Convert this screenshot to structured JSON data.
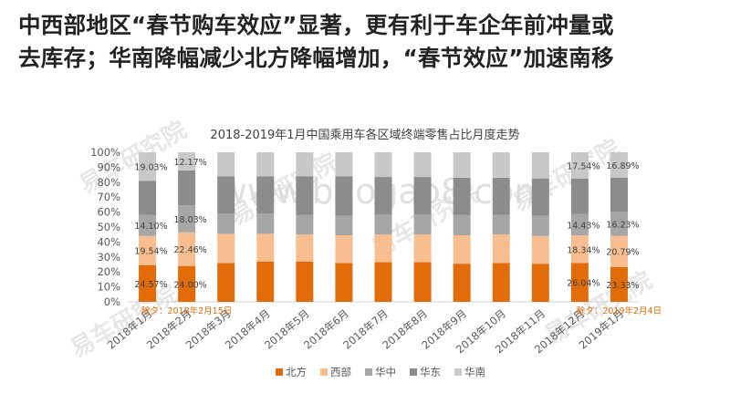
{
  "headline": {
    "line1": "中西部地区“春节购车效应”显著，更有利于车企年前冲量或",
    "line2": "去库存；华南降幅减少北方降幅增加，“春节效应”加速南移"
  },
  "watermarks": [
    "易车研究院",
    "www.baogao8.com"
  ],
  "colors": {
    "北方": "#E36C0A",
    "西部": "#F9BE8F",
    "华中": "#A6A6A6",
    "华东": "#8C8C8C",
    "华南": "#C8C8C8"
  },
  "chart_data": {
    "type": "bar",
    "stacked": "percent",
    "title": "2018-2019年1月中国乘用车各区域终端零售占比月度走势",
    "categories": [
      "2018年1月",
      "2018年2月",
      "2018年3月",
      "2018年4月",
      "2018年5月",
      "2018年6月",
      "2018年7月",
      "2018年8月",
      "2018年9月",
      "2018年10月",
      "2018年11月",
      "2018年12月",
      "2019年1月"
    ],
    "ylim": [
      0,
      100
    ],
    "yticks": [
      "0%",
      "10%",
      "20%",
      "30%",
      "40%",
      "50%",
      "60%",
      "70%",
      "80%",
      "90%",
      "100%"
    ],
    "legend_position": "bottom",
    "grid": false,
    "series": [
      {
        "name": "北方",
        "values": [
          24.57,
          24.0,
          26.0,
          27.0,
          27.0,
          26.0,
          26.5,
          26.5,
          25.5,
          26.0,
          25.5,
          26.04,
          23.33
        ]
      },
      {
        "name": "西部",
        "values": [
          19.54,
          22.46,
          19.5,
          18.5,
          18.0,
          18.5,
          18.5,
          18.5,
          19.0,
          19.0,
          18.5,
          18.34,
          20.79
        ]
      },
      {
        "name": "华中",
        "values": [
          14.1,
          18.03,
          13.5,
          13.5,
          13.0,
          13.0,
          13.5,
          13.5,
          13.5,
          13.0,
          13.5,
          14.43,
          16.23
        ]
      },
      {
        "name": "华东",
        "values": [
          22.76,
          23.34,
          25.0,
          25.0,
          26.0,
          26.5,
          25.0,
          25.0,
          25.0,
          25.0,
          25.0,
          23.65,
          22.76
        ]
      },
      {
        "name": "华南",
        "values": [
          19.03,
          12.17,
          16.0,
          16.0,
          16.0,
          16.0,
          16.5,
          16.5,
          17.0,
          17.0,
          17.5,
          17.54,
          16.89
        ]
      }
    ],
    "data_labels": [
      {
        "category": 0,
        "series": "北方",
        "text": "24.57%"
      },
      {
        "category": 0,
        "series": "西部",
        "text": "19.54%"
      },
      {
        "category": 0,
        "series": "华中",
        "text": "14.10%"
      },
      {
        "category": 0,
        "series": "华南",
        "text": "19.03%"
      },
      {
        "category": 1,
        "series": "北方",
        "text": "24.00%"
      },
      {
        "category": 1,
        "series": "西部",
        "text": "22.46%"
      },
      {
        "category": 1,
        "series": "华中",
        "text": "18.03%"
      },
      {
        "category": 1,
        "series": "华南",
        "text": "12.17%"
      },
      {
        "category": 11,
        "series": "北方",
        "text": "26.04%"
      },
      {
        "category": 11,
        "series": "西部",
        "text": "18.34%"
      },
      {
        "category": 11,
        "series": "华中",
        "text": "14.43%"
      },
      {
        "category": 11,
        "series": "华南",
        "text": "17.54%"
      },
      {
        "category": 12,
        "series": "北方",
        "text": "23.33%"
      },
      {
        "category": 12,
        "series": "西部",
        "text": "20.79%"
      },
      {
        "category": 12,
        "series": "华中",
        "text": "16.23%"
      },
      {
        "category": 12,
        "series": "华南",
        "text": "16.89%"
      }
    ],
    "annotations": [
      {
        "category": 1,
        "text": "除夕：2018年2月15日"
      },
      {
        "category": 12,
        "text": "除夕：2019年2月4日"
      }
    ]
  }
}
